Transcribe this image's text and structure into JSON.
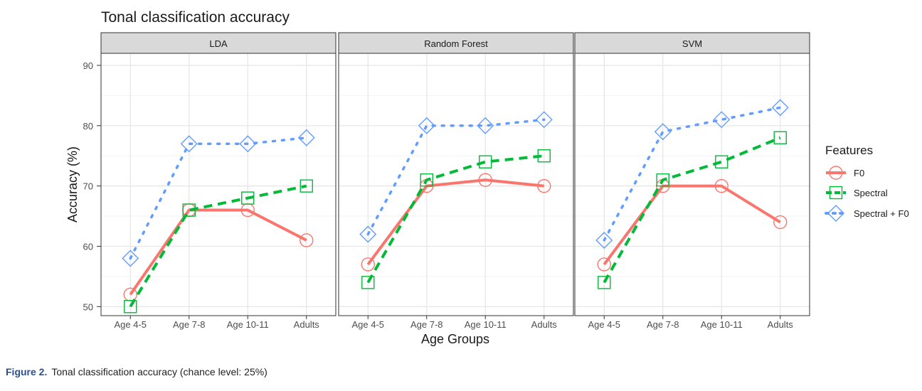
{
  "chart_data": {
    "type": "line",
    "title": "Tonal classification accuracy",
    "xlabel": "Age Groups",
    "ylabel": "Accuracy (%)",
    "categories": [
      "Age 4-5",
      "Age 7-8",
      "Age 10-11",
      "Adults"
    ],
    "ylim": [
      48.5,
      92
    ],
    "yticks": [
      50,
      60,
      70,
      80,
      90
    ],
    "grid": true,
    "legend_title": "Features",
    "legend_position": "right",
    "series_styles": [
      {
        "name": "F0",
        "color": "#F8766D",
        "dash": "solid",
        "marker": "circle"
      },
      {
        "name": "Spectral",
        "color": "#00BA38",
        "dash": "dashed",
        "marker": "square"
      },
      {
        "name": "Spectral + F0",
        "color": "#619CFF",
        "dash": "dotted",
        "marker": "diamond"
      }
    ],
    "panels": [
      {
        "title": "LDA",
        "series": [
          {
            "name": "F0",
            "values": [
              52,
              66,
              66,
              61
            ]
          },
          {
            "name": "Spectral",
            "values": [
              50,
              66,
              68,
              70
            ]
          },
          {
            "name": "Spectral + F0",
            "values": [
              58,
              77,
              77,
              78
            ]
          }
        ]
      },
      {
        "title": "Random Forest",
        "series": [
          {
            "name": "F0",
            "values": [
              57,
              70,
              71,
              70
            ]
          },
          {
            "name": "Spectral",
            "values": [
              54,
              71,
              74,
              75
            ]
          },
          {
            "name": "Spectral + F0",
            "values": [
              62,
              80,
              80,
              81
            ]
          }
        ]
      },
      {
        "title": "SVM",
        "series": [
          {
            "name": "F0",
            "values": [
              57,
              70,
              70,
              64
            ]
          },
          {
            "name": "Spectral",
            "values": [
              54,
              71,
              74,
              78
            ]
          },
          {
            "name": "Spectral + F0",
            "values": [
              61,
              79,
              81,
              83
            ]
          }
        ]
      }
    ]
  },
  "caption": {
    "label": "Figure 2.",
    "text": "Tonal classification accuracy (chance level: 25%)"
  }
}
